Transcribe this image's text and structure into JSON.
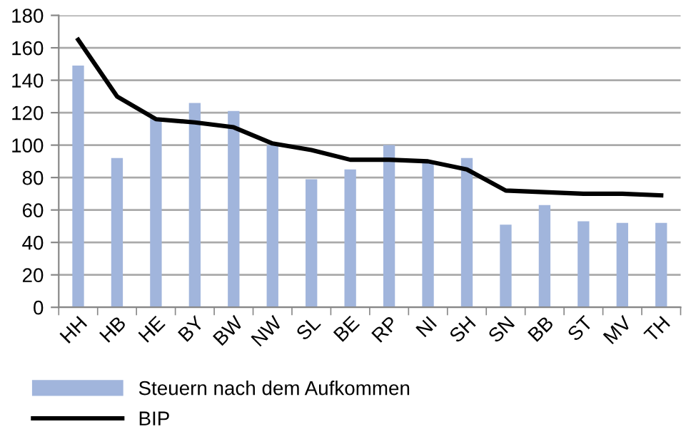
{
  "chart_data": {
    "type": "bar",
    "categories": [
      "HH",
      "HB",
      "HE",
      "BY",
      "BW",
      "NW",
      "SL",
      "BE",
      "RP",
      "NI",
      "SH",
      "SN",
      "BB",
      "ST",
      "MV",
      "TH"
    ],
    "series": [
      {
        "name": "Steuern nach dem Aufkommen",
        "color": "#a1b5dc",
        "values": [
          149,
          92,
          117,
          126,
          121,
          100,
          79,
          85,
          100,
          89,
          92,
          51,
          63,
          53,
          52,
          52
        ]
      },
      {
        "name": "BIP",
        "type": "line",
        "color": "#000000",
        "values": [
          165,
          130,
          116,
          114,
          111,
          101,
          97,
          91,
          91,
          90,
          85,
          72,
          71,
          70,
          70,
          69
        ]
      }
    ],
    "ylim": [
      0,
      180
    ],
    "yticks": [
      0,
      20,
      40,
      60,
      80,
      100,
      120,
      140,
      160,
      180
    ],
    "grid": "y",
    "legend": "bottom left",
    "marker": "none",
    "line_style": "solid"
  }
}
